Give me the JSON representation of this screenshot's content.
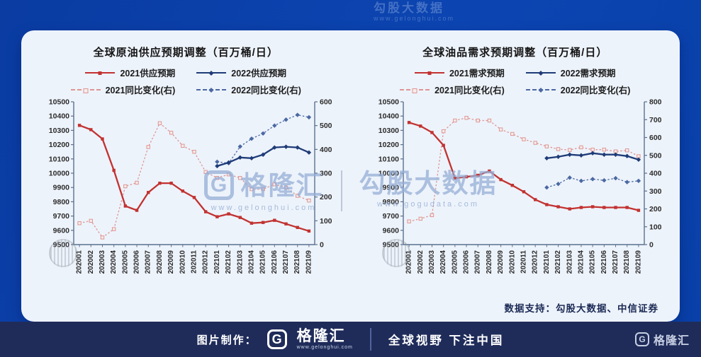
{
  "top_watermark": {
    "brand": "勾股大数据",
    "url": "www.gelonghui.com"
  },
  "watermark_center": {
    "logo_letter": "G",
    "brand_left": "格隆汇",
    "url_left": "www.gelonghui.com",
    "brand_right": "勾股大数据",
    "url_right": "www.gogudata.com"
  },
  "data_support": "数据支持：勾股大数据、中信证券",
  "footer": {
    "made_by": "图片制作：",
    "logo_letter": "G",
    "brand": "格隆汇",
    "brand_url": "www.gelonghui.com",
    "slogan": "全球视野 下注中国"
  },
  "corner_logo": {
    "logo_letter": "G",
    "brand": "格隆汇"
  },
  "colors": {
    "background": "#0c42ab",
    "card": "#edf3fb",
    "footer_bar": "#1f2c5a",
    "red_solid": "#c23230",
    "red_dotted": "#dd9694",
    "blue_solid": "#1f3c78",
    "blue_dotted": "#4a68a2",
    "axis": "#5a718f"
  },
  "chart_data": [
    {
      "type": "line",
      "title": "全球原油供应预期调整（百万桶/日）",
      "legend_position": "top",
      "grid": false,
      "x": [
        "202001",
        "202002",
        "202003",
        "202004",
        "202005",
        "202006",
        "202007",
        "202008",
        "202009",
        "202010",
        "202011",
        "202012",
        "202101",
        "202102",
        "202103",
        "202104",
        "202105",
        "202106",
        "202107",
        "202108",
        "202109"
      ],
      "left_axis": {
        "min": 9500,
        "max": 10500,
        "step": 100
      },
      "right_axis": {
        "min": 0,
        "max": 600,
        "step": 100
      },
      "series": [
        {
          "name": "2021供应预期",
          "axis": "left",
          "style": "solid",
          "marker": "square",
          "color": "#c23230",
          "values": [
            10335,
            10305,
            10240,
            10020,
            9770,
            9740,
            9865,
            9930,
            9930,
            9875,
            9830,
            9730,
            9695,
            9715,
            9690,
            9650,
            9655,
            9670,
            9645,
            9620,
            9595
          ]
        },
        {
          "name": "2022供应预期",
          "axis": "left",
          "style": "solid",
          "marker": "diamond",
          "color": "#1f3c78",
          "values": [
            null,
            null,
            null,
            null,
            null,
            null,
            null,
            null,
            null,
            null,
            null,
            null,
            10050,
            10075,
            10110,
            10105,
            10130,
            10180,
            10185,
            10180,
            10145
          ]
        },
        {
          "name": "2021同比变化(右)",
          "axis": "right",
          "style": "dotted",
          "marker": "square-open",
          "color": "#dd9694",
          "values": [
            90,
            100,
            30,
            65,
            245,
            260,
            410,
            510,
            470,
            415,
            390,
            305,
            280,
            295,
            280,
            233,
            233,
            253,
            240,
            205,
            185
          ]
        },
        {
          "name": "2022同比变化(右)",
          "axis": "right",
          "style": "dotted",
          "marker": "diamond",
          "color": "#4a68a2",
          "values": [
            null,
            null,
            null,
            null,
            null,
            null,
            null,
            null,
            null,
            null,
            null,
            null,
            348,
            342,
            412,
            445,
            467,
            500,
            525,
            545,
            535
          ]
        }
      ]
    },
    {
      "type": "line",
      "title": "全球油品需求预期调整（百万桶/日）",
      "legend_position": "top",
      "grid": false,
      "x": [
        "202001",
        "202002",
        "202003",
        "202004",
        "202005",
        "202006",
        "202007",
        "202008",
        "202009",
        "202010",
        "202011",
        "202012",
        "202101",
        "202102",
        "202103",
        "202104",
        "202105",
        "202106",
        "202107",
        "202108",
        "202109"
      ],
      "left_axis": {
        "min": 9500,
        "max": 10500,
        "step": 100
      },
      "right_axis": {
        "min": 0,
        "max": 800,
        "step": 100
      },
      "series": [
        {
          "name": "2021需求预期",
          "axis": "left",
          "style": "solid",
          "marker": "square",
          "color": "#c23230",
          "values": [
            10355,
            10330,
            10285,
            10195,
            9965,
            9975,
            9985,
            10015,
            9955,
            9915,
            9870,
            9815,
            9780,
            9765,
            9750,
            9760,
            9765,
            9760,
            9760,
            9760,
            9740
          ]
        },
        {
          "name": "2022需求预期",
          "axis": "left",
          "style": "solid",
          "marker": "diamond",
          "color": "#1f3c78",
          "values": [
            null,
            null,
            null,
            null,
            null,
            null,
            null,
            null,
            null,
            null,
            null,
            null,
            10105,
            10115,
            10130,
            10125,
            10140,
            10130,
            10130,
            10120,
            10095
          ]
        },
        {
          "name": "2021同比变化(右)",
          "axis": "right",
          "style": "dotted",
          "marker": "square-open",
          "color": "#dd9694",
          "values": [
            130,
            145,
            165,
            635,
            695,
            710,
            695,
            695,
            645,
            620,
            590,
            570,
            550,
            535,
            530,
            545,
            532,
            532,
            522,
            528,
            495
          ]
        },
        {
          "name": "2022同比变化(右)",
          "axis": "right",
          "style": "dotted",
          "marker": "diamond",
          "color": "#4a68a2",
          "values": [
            null,
            null,
            null,
            null,
            null,
            null,
            null,
            null,
            null,
            null,
            null,
            null,
            320,
            340,
            375,
            357,
            367,
            360,
            372,
            350,
            357
          ]
        }
      ]
    }
  ]
}
